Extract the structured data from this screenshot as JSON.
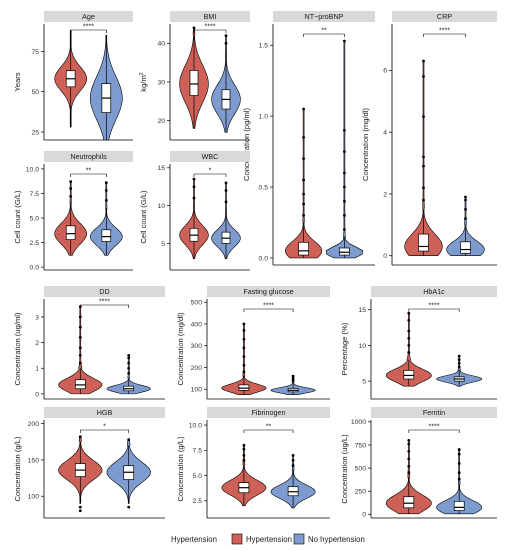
{
  "legend": {
    "title": "Hypertension",
    "items": [
      {
        "label": "Hypertension",
        "color": "#CD6157"
      },
      {
        "label": "No hypertension",
        "color": "#7E9BCF"
      }
    ]
  },
  "chart_data": [
    {
      "type": "violin",
      "title": "Age",
      "ylabel": "Years",
      "ylim": [
        20,
        92
      ],
      "ticks": [
        25,
        50,
        75
      ],
      "tick_labels": [
        "25",
        "50",
        "75"
      ],
      "significance": "****",
      "groups": [
        {
          "name": "Hypertension",
          "min": 28,
          "q1": 53,
          "median": 58,
          "q3": 63,
          "max": 88,
          "outliers": []
        },
        {
          "name": "No hypertension",
          "min": 20,
          "q1": 37,
          "median": 46,
          "q3": 55,
          "max": 85,
          "outliers": []
        }
      ]
    },
    {
      "type": "violin",
      "title": "BMI",
      "ylabel": "kg/m2",
      "ylim": [
        15,
        45
      ],
      "ticks": [
        20,
        30,
        40
      ],
      "tick_labels": [
        "20",
        "30",
        "40"
      ],
      "significance": "****",
      "groups": [
        {
          "name": "Hypertension",
          "min": 18,
          "q1": 26.5,
          "median": 29.5,
          "q3": 33,
          "max": 42,
          "outliers": [
            44
          ]
        },
        {
          "name": "No hypertension",
          "min": 17,
          "q1": 23,
          "median": 25.5,
          "q3": 28,
          "max": 38,
          "outliers": [
            40,
            42
          ]
        }
      ]
    },
    {
      "type": "violin",
      "title": "NT−proBNP",
      "ylabel": "Concentration (pg/ml)",
      "ylim": [
        -0.05,
        1.65
      ],
      "ticks": [
        0,
        0.5,
        1.0,
        1.5
      ],
      "tick_labels": [
        "0.0",
        "0.5",
        "1.0",
        "1.5"
      ],
      "significance": "**",
      "groups": [
        {
          "name": "Hypertension",
          "min": 0,
          "q1": 0.02,
          "median": 0.05,
          "q3": 0.11,
          "max": 0.25,
          "outliers": [
            0.3,
            0.38,
            0.45,
            0.55,
            0.7,
            0.85,
            1.05
          ]
        },
        {
          "name": "No hypertension",
          "min": 0,
          "q1": 0.02,
          "median": 0.04,
          "q3": 0.07,
          "max": 0.15,
          "outliers": [
            0.2,
            0.3,
            0.4,
            0.5,
            0.6,
            0.75,
            0.9,
            1.53
          ]
        }
      ]
    },
    {
      "type": "violin",
      "title": "CRP",
      "ylabel": "Concentration (mg/dl)",
      "ylim": [
        -0.3,
        7.5
      ],
      "ticks": [
        0,
        2,
        4,
        6
      ],
      "tick_labels": [
        "0",
        "2",
        "4",
        "6"
      ],
      "significance": "****",
      "groups": [
        {
          "name": "Hypertension",
          "min": 0,
          "q1": 0.15,
          "median": 0.3,
          "q3": 0.7,
          "max": 1.5,
          "outliers": [
            1.8,
            2.2,
            2.9,
            3.2,
            4.5,
            5.8,
            6.3
          ]
        },
        {
          "name": "No hypertension",
          "min": 0,
          "q1": 0.08,
          "median": 0.2,
          "q3": 0.45,
          "max": 1.0,
          "outliers": [
            1.2,
            1.5,
            1.8,
            1.9
          ]
        }
      ]
    },
    {
      "type": "violin",
      "title": "Neutrophils",
      "ylabel": "Cell count (G/L)",
      "ylim": [
        -0.3,
        10.5
      ],
      "ticks": [
        0,
        2.5,
        5,
        7.5,
        10
      ],
      "tick_labels": [
        "0.0",
        "2.5",
        "5.0",
        "7.5",
        "10.0"
      ],
      "significance": "**",
      "groups": [
        {
          "name": "Hypertension",
          "min": 1.2,
          "q1": 2.8,
          "median": 3.4,
          "q3": 4.2,
          "max": 6.5,
          "outliers": [
            7.2,
            8.0,
            8.7
          ]
        },
        {
          "name": "No hypertension",
          "min": 1.2,
          "q1": 2.6,
          "median": 3.1,
          "q3": 3.8,
          "max": 6.0,
          "outliers": [
            6.8,
            7.8,
            8.6
          ]
        }
      ]
    },
    {
      "type": "violin",
      "title": "WBC",
      "ylabel": "Cell count (G/L)",
      "ylim": [
        1.5,
        15.5
      ],
      "ticks": [
        5,
        10,
        15
      ],
      "tick_labels": [
        "5",
        "10",
        "15"
      ],
      "significance": "*",
      "groups": [
        {
          "name": "Hypertension",
          "min": 3,
          "q1": 5.3,
          "median": 6.1,
          "q3": 7.0,
          "max": 10,
          "outliers": [
            11,
            12.5,
            13.5
          ]
        },
        {
          "name": "No hypertension",
          "min": 3,
          "q1": 5.0,
          "median": 5.7,
          "q3": 6.5,
          "max": 9.5,
          "outliers": [
            10.5,
            12,
            13
          ]
        }
      ]
    },
    {
      "type": "violin",
      "title": "DD",
      "ylabel": "Concentration (ug/ml)",
      "ylim": [
        -0.2,
        3.7
      ],
      "ticks": [
        0,
        1,
        2,
        3
      ],
      "tick_labels": [
        "0",
        "1",
        "2",
        "3"
      ],
      "significance": "****",
      "groups": [
        {
          "name": "Hypertension",
          "min": 0,
          "q1": 0.2,
          "median": 0.35,
          "q3": 0.55,
          "max": 1.0,
          "outliers": [
            1.2,
            1.5,
            1.8,
            2.2,
            2.6,
            3.0,
            3.4
          ]
        },
        {
          "name": "No hypertension",
          "min": 0,
          "q1": 0.12,
          "median": 0.2,
          "q3": 0.3,
          "max": 0.6,
          "outliers": [
            0.8,
            1.0,
            1.2,
            1.4,
            1.5
          ]
        }
      ]
    },
    {
      "type": "violin",
      "title": "Fasting glucose",
      "ylabel": "Concentration (mg/dl)",
      "ylim": [
        55,
        515
      ],
      "ticks": [
        100,
        200,
        300,
        400,
        500
      ],
      "tick_labels": [
        "100",
        "200",
        "300",
        "400",
        "500"
      ],
      "significance": "****",
      "groups": [
        {
          "name": "Hypertension",
          "min": 75,
          "q1": 95,
          "median": 105,
          "q3": 120,
          "max": 160,
          "outliers": [
            180,
            210,
            250,
            290,
            330,
            370,
            400
          ]
        },
        {
          "name": "No hypertension",
          "min": 75,
          "q1": 88,
          "median": 95,
          "q3": 104,
          "max": 130,
          "outliers": [
            140,
            150,
            160
          ]
        }
      ]
    },
    {
      "type": "violin",
      "title": "HbA1c",
      "ylabel": "Percentage (%)",
      "ylim": [
        2.5,
        16.5
      ],
      "ticks": [
        5,
        10,
        15
      ],
      "tick_labels": [
        "5",
        "10",
        "15"
      ],
      "significance": "****",
      "groups": [
        {
          "name": "Hypertension",
          "min": 4.3,
          "q1": 5.3,
          "median": 5.8,
          "q3": 6.5,
          "max": 8.0,
          "outliers": [
            9,
            10,
            11,
            12,
            13.5,
            14.5
          ]
        },
        {
          "name": "No hypertension",
          "min": 4.3,
          "q1": 5.0,
          "median": 5.3,
          "q3": 5.6,
          "max": 6.5,
          "outliers": [
            7.0,
            7.5,
            8.0,
            8.5
          ]
        }
      ]
    },
    {
      "type": "violin",
      "title": "HGB",
      "ylabel": "Concentration (g/L)",
      "ylim": [
        70,
        205
      ],
      "ticks": [
        100,
        150,
        200
      ],
      "tick_labels": [
        "100",
        "150",
        "200"
      ],
      "significance": "*",
      "groups": [
        {
          "name": "Hypertension",
          "min": 90,
          "q1": 127,
          "median": 136,
          "q3": 145,
          "max": 175,
          "outliers": [
            80,
            85,
            182
          ]
        },
        {
          "name": "No hypertension",
          "min": 90,
          "q1": 123,
          "median": 133,
          "q3": 142,
          "max": 170,
          "outliers": [
            85,
            178
          ]
        }
      ]
    },
    {
      "type": "violin",
      "title": "Fibrinogen",
      "ylabel": "Concentration (g/L)",
      "ylim": [
        0.8,
        10.5
      ],
      "ticks": [
        2.5,
        5,
        7.5,
        10
      ],
      "tick_labels": [
        "2.5",
        "5.0",
        "7.5",
        "10.0"
      ],
      "significance": "**",
      "groups": [
        {
          "name": "Hypertension",
          "min": 2.0,
          "q1": 3.3,
          "median": 3.8,
          "q3": 4.3,
          "max": 6.0,
          "outliers": [
            6.5,
            7.0,
            7.6,
            8.0
          ]
        },
        {
          "name": "No hypertension",
          "min": 1.8,
          "q1": 3.0,
          "median": 3.4,
          "q3": 3.9,
          "max": 5.5,
          "outliers": [
            6.0,
            6.5,
            7.0
          ]
        }
      ]
    },
    {
      "type": "violin",
      "title": "Ferritin",
      "ylabel": "Concentration (ug/L)",
      "ylim": [
        -40,
        1020
      ],
      "ticks": [
        0,
        250,
        500,
        750,
        1000
      ],
      "tick_labels": [
        "0",
        "250",
        "500",
        "750",
        "1000"
      ],
      "significance": "****",
      "groups": [
        {
          "name": "Hypertension",
          "min": 5,
          "q1": 70,
          "median": 120,
          "q3": 190,
          "max": 400,
          "outliers": [
            450,
            520,
            600,
            680,
            760,
            800
          ]
        },
        {
          "name": "No hypertension",
          "min": 5,
          "q1": 40,
          "median": 75,
          "q3": 140,
          "max": 320,
          "outliers": [
            380,
            450,
            550,
            650,
            700
          ]
        }
      ]
    }
  ]
}
